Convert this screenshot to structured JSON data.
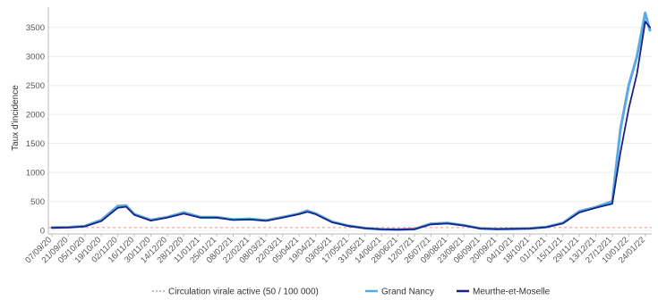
{
  "chart_data": {
    "type": "line",
    "xlabel": "",
    "ylabel": "Taux d'incidence",
    "ylim": [
      -60,
      3850
    ],
    "yticks": [
      0,
      500,
      1000,
      1500,
      2000,
      2500,
      3000,
      3500
    ],
    "grid": true,
    "legend_position": "bottom",
    "colors": {
      "threshold": "#e8908f",
      "grand_nancy": "#5aa9e6",
      "meurthe_et_moselle": "#1a237e"
    },
    "x_tick_labels": [
      "07/09/20",
      "21/09/20",
      "05/10/20",
      "19/10/20",
      "02/11/20",
      "16/11/20",
      "30/11/20",
      "14/12/20",
      "28/12/20",
      "11/01/21",
      "25/01/21",
      "08/02/21",
      "22/02/21",
      "08/03/21",
      "22/03/21",
      "05/04/21",
      "19/04/21",
      "03/05/21",
      "17/05/21",
      "31/05/21",
      "14/06/21",
      "28/06/21",
      "12/07/21",
      "26/07/21",
      "09/08/21",
      "23/08/21",
      "06/09/21",
      "20/09/21",
      "04/10/21",
      "18/10/21",
      "01/11/21",
      "15/11/21",
      "29/11/21",
      "13/12/21",
      "27/12/21",
      "10/01/22",
      "24/01/22"
    ],
    "threshold": {
      "name": "Circulation virale active (50 / 100 000)",
      "value": 50
    },
    "series": [
      {
        "name": "Grand Nancy",
        "x": [
          "07/09/20",
          "21/09/20",
          "05/10/20",
          "19/10/20",
          "02/11/20",
          "09/11/20",
          "16/11/20",
          "30/11/20",
          "14/12/20",
          "28/12/20",
          "11/01/21",
          "25/01/21",
          "08/02/21",
          "22/02/21",
          "08/03/21",
          "22/03/21",
          "05/04/21",
          "12/04/21",
          "19/04/21",
          "03/05/21",
          "17/05/21",
          "31/05/21",
          "14/06/21",
          "28/06/21",
          "12/07/21",
          "26/07/21",
          "09/08/21",
          "23/08/21",
          "06/09/21",
          "20/09/21",
          "04/10/21",
          "18/10/21",
          "01/11/21",
          "15/11/21",
          "29/11/21",
          "13/12/21",
          "27/12/21",
          "03/01/22",
          "10/01/22",
          "17/01/22",
          "24/01/22",
          "28/01/22"
        ],
        "values": [
          50,
          55,
          75,
          180,
          420,
          430,
          280,
          180,
          230,
          310,
          230,
          230,
          190,
          200,
          175,
          230,
          290,
          340,
          290,
          150,
          80,
          40,
          20,
          15,
          25,
          115,
          130,
          90,
          35,
          25,
          30,
          35,
          60,
          130,
          330,
          400,
          500,
          1750,
          2500,
          3000,
          3750,
          3450
        ]
      },
      {
        "name": "Meurthe-et-Moselle",
        "x": [
          "07/09/20",
          "21/09/20",
          "05/10/20",
          "19/10/20",
          "02/11/20",
          "09/11/20",
          "16/11/20",
          "30/11/20",
          "14/12/20",
          "28/12/20",
          "11/01/21",
          "25/01/21",
          "08/02/21",
          "22/02/21",
          "08/03/21",
          "22/03/21",
          "05/04/21",
          "12/04/21",
          "19/04/21",
          "03/05/21",
          "17/05/21",
          "31/05/21",
          "14/06/21",
          "28/06/21",
          "12/07/21",
          "26/07/21",
          "09/08/21",
          "23/08/21",
          "06/09/21",
          "20/09/21",
          "04/10/21",
          "18/10/21",
          "01/11/21",
          "15/11/21",
          "29/11/21",
          "13/12/21",
          "27/12/21",
          "03/01/22",
          "10/01/22",
          "17/01/22",
          "24/01/22",
          "28/01/22"
        ],
        "values": [
          45,
          50,
          70,
          160,
          390,
          410,
          270,
          170,
          220,
          290,
          220,
          220,
          180,
          190,
          165,
          220,
          280,
          320,
          280,
          140,
          75,
          38,
          18,
          14,
          22,
          105,
          120,
          85,
          33,
          23,
          28,
          33,
          55,
          120,
          310,
          390,
          460,
          1350,
          2100,
          2700,
          3600,
          3500
        ]
      }
    ]
  }
}
